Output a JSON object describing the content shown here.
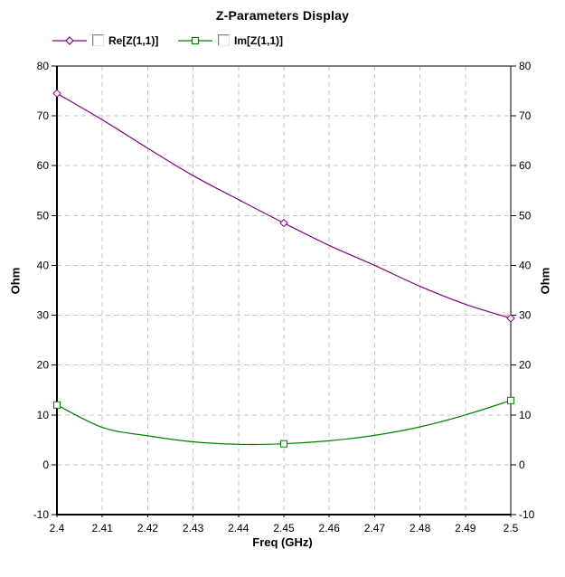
{
  "title": "Z-Parameters Display",
  "legend": {
    "items": [
      {
        "label": "Re[Z(1,1)]",
        "color": "#800080",
        "marker": "diamond",
        "checkbox_checked": false
      },
      {
        "label": "Im[Z(1,1)]",
        "color": "#008000",
        "marker": "square",
        "checkbox_checked": false
      }
    ]
  },
  "colors": {
    "background": "#FFFFFF",
    "axis": "#000000",
    "grid": "#C4C4C4",
    "re_trace": "#800080",
    "im_trace": "#008000"
  },
  "chart_data": {
    "type": "line",
    "title": "Z-Parameters Display",
    "xlabel": "Freq (GHz)",
    "ylabel_left": "Ohm",
    "ylabel_right": "Ohm",
    "xlim": [
      2.4,
      2.5
    ],
    "ylim": [
      -10,
      80
    ],
    "grid": "dashed",
    "legend_position": "top-left",
    "xticks": [
      2.4,
      2.41,
      2.42,
      2.43,
      2.44,
      2.45,
      2.46,
      2.47,
      2.48,
      2.49,
      2.5
    ],
    "xtick_labels": [
      "2.4",
      "2.41",
      "2.42",
      "2.43",
      "2.44",
      "2.45",
      "2.46",
      "2.47",
      "2.48",
      "2.49",
      "2.5"
    ],
    "yticks": [
      -10,
      0,
      10,
      20,
      30,
      40,
      50,
      60,
      70,
      80
    ],
    "ytick_labels": [
      "-10",
      "0",
      "10",
      "20",
      "30",
      "40",
      "50",
      "60",
      "70",
      "80"
    ],
    "x": [
      2.4,
      2.41,
      2.42,
      2.43,
      2.44,
      2.45,
      2.46,
      2.47,
      2.48,
      2.49,
      2.5
    ],
    "series": [
      {
        "name": "Re[Z(1,1)]",
        "color": "#800080",
        "marker": "diamond",
        "markers_at": [
          0,
          5,
          10
        ],
        "values": [
          74.5,
          69.2,
          63.5,
          58.0,
          53.2,
          48.5,
          44.0,
          40.0,
          35.8,
          32.2,
          29.4
        ]
      },
      {
        "name": "Im[Z(1,1)]",
        "color": "#008000",
        "marker": "square",
        "markers_at": [
          0,
          5,
          10
        ],
        "values": [
          12.0,
          7.5,
          5.8,
          4.6,
          4.1,
          4.2,
          4.8,
          5.9,
          7.6,
          10.0,
          12.9
        ]
      }
    ]
  }
}
